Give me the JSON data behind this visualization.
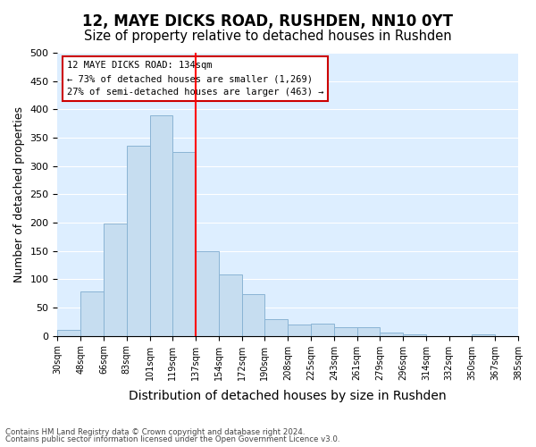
{
  "title": "12, MAYE DICKS ROAD, RUSHDEN, NN10 0YT",
  "subtitle": "Size of property relative to detached houses in Rushden",
  "xlabel": "Distribution of detached houses by size in Rushden",
  "ylabel": "Number of detached properties",
  "bin_labels": [
    "30sqm",
    "48sqm",
    "66sqm",
    "83sqm",
    "101sqm",
    "119sqm",
    "137sqm",
    "154sqm",
    "172sqm",
    "190sqm",
    "208sqm",
    "225sqm",
    "243sqm",
    "261sqm",
    "279sqm",
    "296sqm",
    "314sqm",
    "332sqm",
    "350sqm",
    "367sqm",
    "385sqm"
  ],
  "bar_heights": [
    10,
    78,
    198,
    335,
    390,
    325,
    150,
    109,
    73,
    30,
    20,
    22,
    15,
    15,
    5,
    2,
    0,
    0,
    2,
    0
  ],
  "bar_color": "#c6ddf0",
  "bar_edge_color": "#8ab4d4",
  "vline_x": 6,
  "vline_color": "red",
  "ylim": [
    0,
    500
  ],
  "annotation_title": "12 MAYE DICKS ROAD: 134sqm",
  "annotation_line1": "← 73% of detached houses are smaller (1,269)",
  "annotation_line2": "27% of semi-detached houses are larger (463) →",
  "annotation_box_color": "#ffffff",
  "annotation_box_edge": "#cc0000",
  "footnote1": "Contains HM Land Registry data © Crown copyright and database right 2024.",
  "footnote2": "Contains public sector information licensed under the Open Government Licence v3.0.",
  "title_fontsize": 12,
  "subtitle_fontsize": 10.5,
  "ylabel_fontsize": 9,
  "xlabel_fontsize": 10
}
